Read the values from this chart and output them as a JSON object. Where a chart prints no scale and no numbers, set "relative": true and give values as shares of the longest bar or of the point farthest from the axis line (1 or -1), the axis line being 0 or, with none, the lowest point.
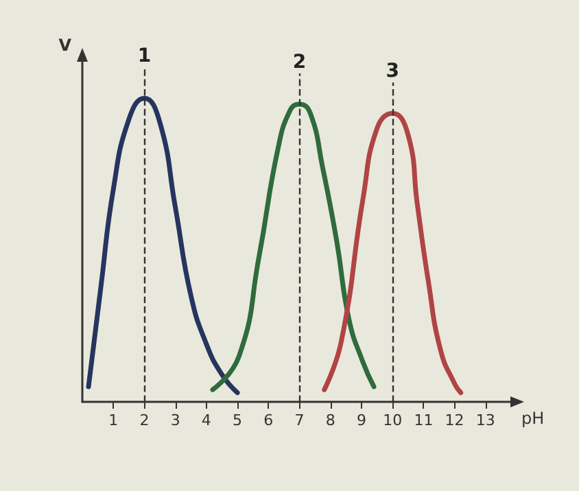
{
  "chart_data": {
    "type": "line",
    "relative": true,
    "xlabel": "pH",
    "ylabel": "V",
    "xlim": [
      0,
      13.8
    ],
    "xticks": [
      1,
      2,
      3,
      4,
      5,
      6,
      7,
      8,
      9,
      10,
      11,
      12,
      13
    ],
    "grid": false,
    "marker": "none",
    "line_style": "solid",
    "series": [
      {
        "name": "1",
        "color": "#26355f",
        "x": [
          0.2,
          0.6,
          1,
          1.5,
          2,
          2.5,
          3,
          3.5,
          4,
          4.5,
          5
        ],
        "values": [
          0.05,
          0.38,
          0.7,
          0.93,
          1,
          0.92,
          0.64,
          0.35,
          0.19,
          0.09,
          0.03
        ]
      },
      {
        "name": "2",
        "color": "#2f6b3c",
        "x": [
          4.2,
          5.05,
          5.7,
          6.3,
          6.7,
          7,
          7.35,
          7.75,
          8.2,
          8.6,
          9.05,
          9.4
        ],
        "values": [
          0.04,
          0.15,
          0.48,
          0.83,
          0.96,
          0.98,
          0.95,
          0.77,
          0.53,
          0.27,
          0.13,
          0.05
        ]
      },
      {
        "name": "3",
        "color": "#b04444",
        "x": [
          7.8,
          8.35,
          9.05,
          9.5,
          10,
          10.5,
          10.8,
          11.15,
          11.55,
          12,
          12.2
        ],
        "values": [
          0.04,
          0.2,
          0.67,
          0.9,
          0.95,
          0.88,
          0.65,
          0.4,
          0.17,
          0.06,
          0.03
        ]
      }
    ],
    "ref_lines": [
      {
        "axis": "x",
        "value": 2,
        "line_style": "dashed"
      },
      {
        "axis": "x",
        "value": 7,
        "line_style": "dashed"
      },
      {
        "axis": "x",
        "value": 10,
        "line_style": "dashed"
      }
    ]
  }
}
